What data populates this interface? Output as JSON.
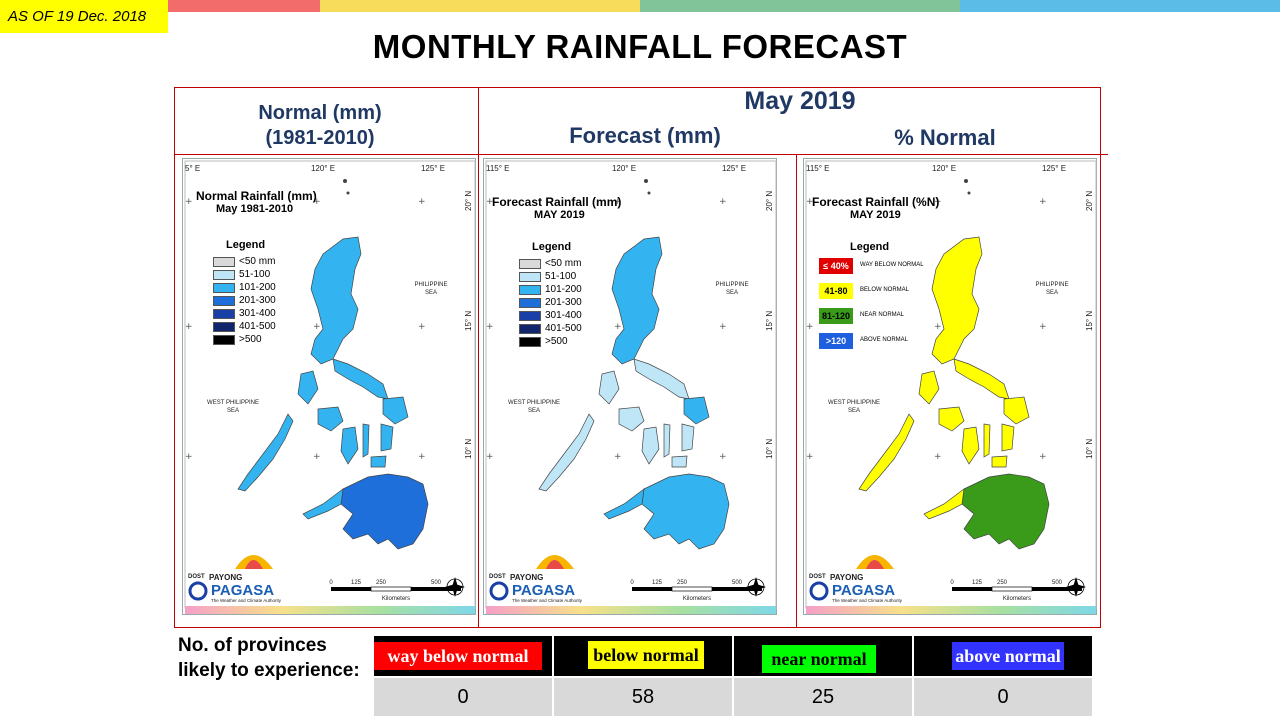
{
  "as_of": "AS OF 19 Dec. 2018",
  "title": "MONTHLY RAINFALL FORECAST",
  "header": {
    "normal_line1": "Normal (mm)",
    "normal_line2": "(1981-2010)",
    "month": "May 2019",
    "forecast": "Forecast (mm)",
    "percent": "% Normal"
  },
  "maps": [
    {
      "title1": "Normal Rainfall (mm)",
      "title2": "May 1981-2010",
      "legend_title": "Legend",
      "legend": [
        {
          "label": "<50 mm",
          "color": "#d9d9d9"
        },
        {
          "label": "51-100",
          "color": "#bfe6f7"
        },
        {
          "label": "101-200",
          "color": "#33b4f0"
        },
        {
          "label": "201-300",
          "color": "#1e6fd9"
        },
        {
          "label": "301-400",
          "color": "#1a3fa6"
        },
        {
          "label": "401-500",
          "color": "#10256b"
        },
        {
          "label": ">500",
          "color": "#000000"
        }
      ]
    },
    {
      "title1": "Forecast Rainfall (mm)",
      "title2": "MAY 2019",
      "legend_title": "Legend",
      "legend": [
        {
          "label": "<50 mm",
          "color": "#d9d9d9"
        },
        {
          "label": "51-100",
          "color": "#bfe6f7"
        },
        {
          "label": "101-200",
          "color": "#33b4f0"
        },
        {
          "label": "201-300",
          "color": "#1e6fd9"
        },
        {
          "label": "301-400",
          "color": "#1a3fa6"
        },
        {
          "label": "401-500",
          "color": "#10256b"
        },
        {
          "label": ">500",
          "color": "#000000"
        }
      ]
    },
    {
      "title1": "Forecast Rainfall (%N)",
      "title2": "MAY 2019",
      "legend_title": "Legend",
      "legend": [
        {
          "box": "≤ 40%",
          "label": "WAY BELOW NORMAL",
          "color": "#e00000",
          "text": "#ffffff"
        },
        {
          "box": "41-80",
          "label": "BELOW NORMAL",
          "color": "#ffff00",
          "text": "#000000"
        },
        {
          "box": "81-120",
          "label": "NEAR NORMAL",
          "color": "#3a9a1a",
          "text": "#000000"
        },
        {
          "box": ">120",
          "label": "ABOVE NORMAL",
          "color": "#1e5fe0",
          "text": "#ffffff"
        }
      ]
    }
  ],
  "map_labels": {
    "lon_left": "5° E",
    "lon_115": "115° E",
    "lon_120": "120° E",
    "lon_125": "125° E",
    "lat_20": "20° N",
    "lat_15": "15° N",
    "lat_10": "10° N",
    "philippine_sea_1": "PHILIPPINE",
    "philippine_sea_2": "SEA",
    "west_sea_1": "WEST PHILIPPINE",
    "west_sea_2": "SEA",
    "scale": [
      "0",
      "125",
      "250",
      "500"
    ],
    "scale_unit": "Kilometers",
    "logo_dost": "DOST",
    "logo_payong": "PAYONG",
    "logo_pagasa": "PAGASA",
    "logo_tagline": "The Weather and Climate Authority"
  },
  "bottom": {
    "label": "No. of provinces likely to experience:",
    "categories": [
      {
        "label": "way below normal",
        "bg": "#ff0000",
        "fg": "#ffffff",
        "count": "0"
      },
      {
        "label": "below normal",
        "bg": "#ffff00",
        "fg": "#000000",
        "count": "58"
      },
      {
        "label": "near normal",
        "bg": "#00ff00",
        "fg": "#000000",
        "count": "25"
      },
      {
        "label": "above normal",
        "bg": "#3333ff",
        "fg": "#ffffff",
        "count": "0"
      }
    ]
  },
  "colors": {
    "stripes": [
      "#f26c6c",
      "#f7dc5b",
      "#82c49a",
      "#5bbce8"
    ],
    "frame": "#c00000",
    "header_text": "#1f3864"
  }
}
